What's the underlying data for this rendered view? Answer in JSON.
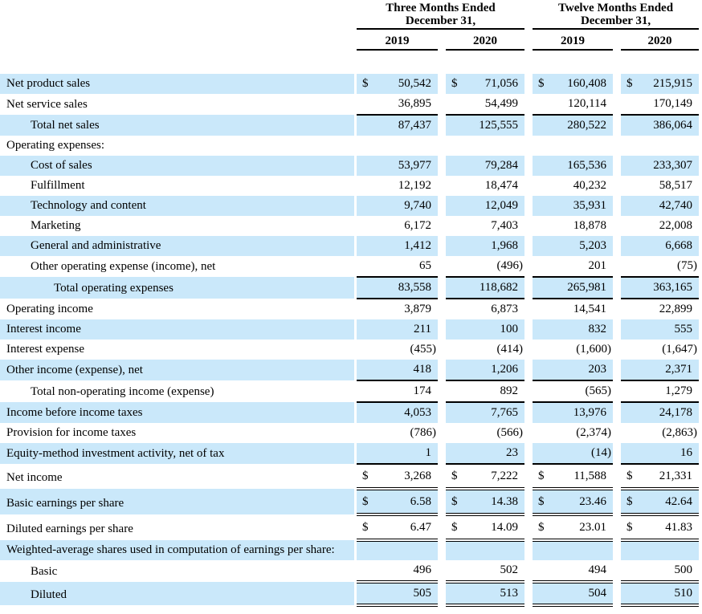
{
  "table": {
    "currency_symbol": "$",
    "col_groups": [
      {
        "title_line1": "Three Months Ended",
        "title_line2": "December 31,"
      },
      {
        "title_line1": "Twelve Months Ended",
        "title_line2": "December 31,"
      }
    ],
    "year_headers": [
      "2019",
      "2020",
      "2019",
      "2020"
    ],
    "rows": [
      {
        "label": "Net product sales",
        "indent": 0,
        "hl": true,
        "dollar": true,
        "border": "none",
        "values": [
          "50,542",
          "71,056",
          "160,408",
          "215,915"
        ]
      },
      {
        "label": "Net service sales",
        "indent": 0,
        "hl": false,
        "dollar": false,
        "border": "single",
        "values": [
          "36,895",
          "54,499",
          "120,114",
          "170,149"
        ]
      },
      {
        "label": "Total net sales",
        "indent": 1,
        "hl": true,
        "dollar": false,
        "border": "none",
        "values": [
          "87,437",
          "125,555",
          "280,522",
          "386,064"
        ]
      },
      {
        "label": "Operating expenses:",
        "indent": 0,
        "hl": false,
        "dollar": false,
        "border": "none",
        "values": null
      },
      {
        "label": "Cost of sales",
        "indent": 1,
        "hl": true,
        "dollar": false,
        "border": "none",
        "values": [
          "53,977",
          "79,284",
          "165,536",
          "233,307"
        ]
      },
      {
        "label": "Fulfillment",
        "indent": 1,
        "hl": false,
        "dollar": false,
        "border": "none",
        "values": [
          "12,192",
          "18,474",
          "40,232",
          "58,517"
        ]
      },
      {
        "label": "Technology and content",
        "indent": 1,
        "hl": true,
        "dollar": false,
        "border": "none",
        "values": [
          "9,740",
          "12,049",
          "35,931",
          "42,740"
        ]
      },
      {
        "label": "Marketing",
        "indent": 1,
        "hl": false,
        "dollar": false,
        "border": "none",
        "values": [
          "6,172",
          "7,403",
          "18,878",
          "22,008"
        ]
      },
      {
        "label": "General and administrative",
        "indent": 1,
        "hl": true,
        "dollar": false,
        "border": "none",
        "values": [
          "1,412",
          "1,968",
          "5,203",
          "6,668"
        ]
      },
      {
        "label": "Other operating expense (income), net",
        "indent": 1,
        "hl": false,
        "dollar": false,
        "border": "single",
        "values": [
          "65",
          "(496)",
          "201",
          "(75)"
        ]
      },
      {
        "label": "Total operating expenses",
        "indent": 2,
        "hl": true,
        "dollar": false,
        "border": "single",
        "values": [
          "83,558",
          "118,682",
          "265,981",
          "363,165"
        ]
      },
      {
        "label": "Operating income",
        "indent": 0,
        "hl": false,
        "dollar": false,
        "border": "none",
        "values": [
          "3,879",
          "6,873",
          "14,541",
          "22,899"
        ]
      },
      {
        "label": "Interest income",
        "indent": 0,
        "hl": true,
        "dollar": false,
        "border": "none",
        "values": [
          "211",
          "100",
          "832",
          "555"
        ]
      },
      {
        "label": "Interest expense",
        "indent": 0,
        "hl": false,
        "dollar": false,
        "border": "none",
        "values": [
          "(455)",
          "(414)",
          "(1,600)",
          "(1,647)"
        ]
      },
      {
        "label": "Other income (expense), net",
        "indent": 0,
        "hl": true,
        "dollar": false,
        "border": "single",
        "values": [
          "418",
          "1,206",
          "203",
          "2,371"
        ]
      },
      {
        "label": "Total non-operating income (expense)",
        "indent": 1,
        "hl": false,
        "dollar": false,
        "border": "single",
        "values": [
          "174",
          "892",
          "(565)",
          "1,279"
        ]
      },
      {
        "label": "Income before income taxes",
        "indent": 0,
        "hl": true,
        "dollar": false,
        "border": "none",
        "values": [
          "4,053",
          "7,765",
          "13,976",
          "24,178"
        ]
      },
      {
        "label": "Provision for income taxes",
        "indent": 0,
        "hl": false,
        "dollar": false,
        "border": "none",
        "values": [
          "(786)",
          "(566)",
          "(2,374)",
          "(2,863)"
        ]
      },
      {
        "label": "Equity-method investment activity, net of tax",
        "indent": 0,
        "hl": true,
        "dollar": false,
        "border": "single",
        "values": [
          "1",
          "23",
          "(14)",
          "16"
        ]
      },
      {
        "label": "Net income",
        "indent": 0,
        "hl": false,
        "dollar": true,
        "border": "double",
        "tall": true,
        "values": [
          "3,268",
          "7,222",
          "11,588",
          "21,331"
        ]
      },
      {
        "label": "Basic earnings per share",
        "indent": 0,
        "hl": true,
        "dollar": true,
        "border": "double",
        "tall": true,
        "values": [
          "6.58",
          "14.38",
          "23.46",
          "42.64"
        ]
      },
      {
        "label": "Diluted earnings per share",
        "indent": 0,
        "hl": false,
        "dollar": true,
        "border": "double",
        "tall": true,
        "values": [
          "6.47",
          "14.09",
          "23.01",
          "41.83"
        ]
      },
      {
        "label": "Weighted-average shares used in computation of earnings per share:",
        "indent": 0,
        "hl": true,
        "dollar": false,
        "border": "none",
        "values": null
      },
      {
        "label": "Basic",
        "indent": 1,
        "hl": false,
        "dollar": false,
        "border": "double",
        "values": [
          "496",
          "502",
          "494",
          "500"
        ]
      },
      {
        "label": "Diluted",
        "indent": 1,
        "hl": true,
        "dollar": false,
        "border": "double",
        "values": [
          "505",
          "513",
          "504",
          "510"
        ]
      }
    ]
  }
}
